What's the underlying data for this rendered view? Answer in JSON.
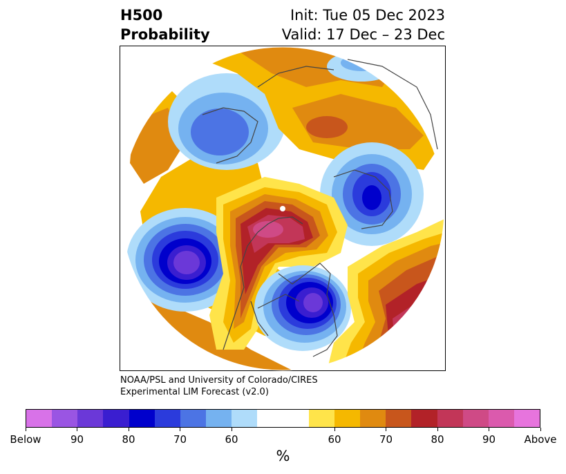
{
  "header": {
    "variable": "H500",
    "product": "Probability",
    "init": "Init: Tue 05 Dec 2023",
    "valid": "Valid: 17 Dec – 23 Dec"
  },
  "credit": {
    "line1": "NOAA/PSL and University of Colorado/CIRES",
    "line2": "Experimental LIM Forecast (v2.0)"
  },
  "colorbar": {
    "colors": [
      "#d872e8",
      "#9a55e3",
      "#6b38d8",
      "#3a1ed0",
      "#0000cc",
      "#2b3bdc",
      "#4c74e4",
      "#75b2f0",
      "#afdcfa",
      "#ffffff",
      "#ffffff",
      "#ffe44a",
      "#f5b800",
      "#e08a10",
      "#c8561c",
      "#b22228",
      "#c23658",
      "#cf4a86",
      "#db5aad",
      "#e774dd"
    ],
    "tick_labels": [
      "Below",
      "90",
      "80",
      "70",
      "60",
      "60",
      "70",
      "80",
      "90",
      "Above"
    ],
    "unit": "%"
  },
  "map": {
    "projection": "north-polar-stereographic",
    "colors": {
      "above_60": "#ffe44a",
      "above_65": "#f5b800",
      "above_70": "#e08a10",
      "above_75": "#c8561c",
      "above_80": "#b22228",
      "above_85": "#c23658",
      "above_90": "#cf4a86",
      "below_60": "#afdcfa",
      "below_65": "#75b2f0",
      "below_70": "#4c74e4",
      "below_75": "#2b3bdc",
      "below_80": "#0000cc",
      "below_85": "#3a1ed0",
      "below_90": "#6b38d8"
    }
  }
}
